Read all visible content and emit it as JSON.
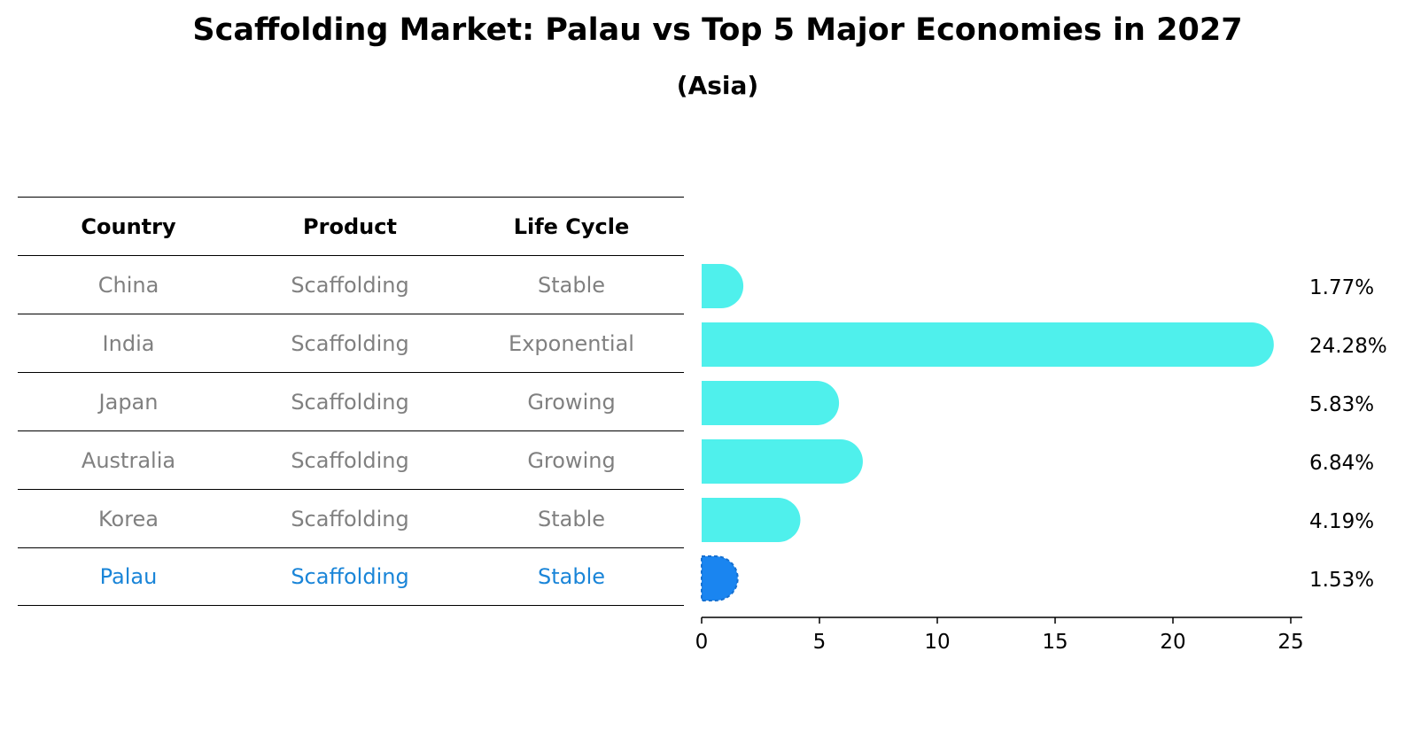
{
  "title": "Scaffolding Market: Palau vs Top 5 Major Economies in 2027",
  "subtitle": "(Asia)",
  "table": {
    "columns": [
      "Country",
      "Product",
      "Life Cycle"
    ],
    "rows": [
      [
        "China",
        "Scaffolding",
        "Stable"
      ],
      [
        "India",
        "Scaffolding",
        "Exponential"
      ],
      [
        "Japan",
        "Scaffolding",
        "Growing"
      ],
      [
        "Australia",
        "Scaffolding",
        "Growing"
      ],
      [
        "Korea",
        "Scaffolding",
        "Stable"
      ],
      [
        "Palau",
        "Scaffolding",
        "Stable"
      ]
    ]
  },
  "chart_data": {
    "type": "bar",
    "orientation": "horizontal",
    "categories": [
      "China",
      "India",
      "Japan",
      "Australia",
      "Korea",
      "Palau"
    ],
    "values": [
      1.77,
      24.28,
      5.83,
      6.84,
      4.19,
      1.53
    ],
    "labels": [
      "1.77%",
      "24.28%",
      "5.83%",
      "6.84%",
      "4.19%",
      "1.53%"
    ],
    "highlight": "Palau",
    "xticks": [
      0,
      5,
      10,
      15,
      20,
      25
    ],
    "xlim": [
      0,
      25.5
    ],
    "colors": {
      "default": "#4ff0ec",
      "highlight": "#1a85f0"
    }
  }
}
